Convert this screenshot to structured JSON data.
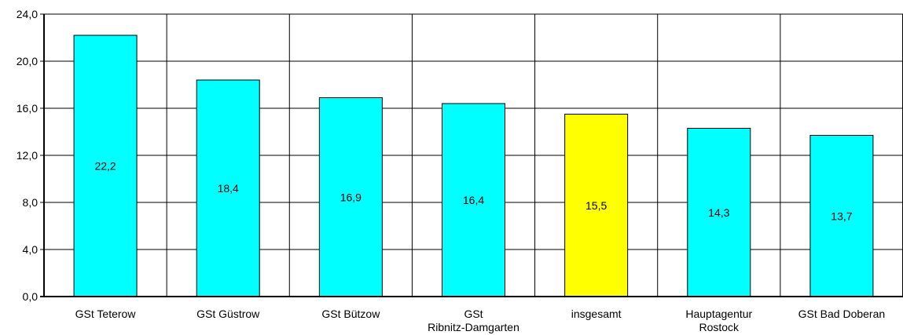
{
  "chart_data": {
    "type": "bar",
    "title": "",
    "xlabel": "",
    "ylabel": "",
    "ylim": [
      0,
      24
    ],
    "yticks": [
      "0,0",
      "4,0",
      "8,0",
      "12,0",
      "16,0",
      "20,0",
      "24,0"
    ],
    "grid": true,
    "categories": [
      [
        "GSt Teterow"
      ],
      [
        "GSt Güstrow"
      ],
      [
        "GSt Bützow"
      ],
      [
        "GSt",
        "Ribnitz-Damgarten"
      ],
      [
        "insgesamt"
      ],
      [
        "Hauptagentur",
        "Rostock"
      ],
      [
        "GSt Bad Doberan"
      ]
    ],
    "values": [
      22.2,
      18.4,
      16.9,
      16.4,
      15.5,
      14.3,
      13.7
    ],
    "value_labels": [
      "22,2",
      "18,4",
      "16,9",
      "16,4",
      "15,5",
      "14,3",
      "13,7"
    ],
    "bar_colors": [
      "#00FFFF",
      "#00FFFF",
      "#00FFFF",
      "#00FFFF",
      "#FFFF00",
      "#00FFFF",
      "#00FFFF"
    ]
  }
}
